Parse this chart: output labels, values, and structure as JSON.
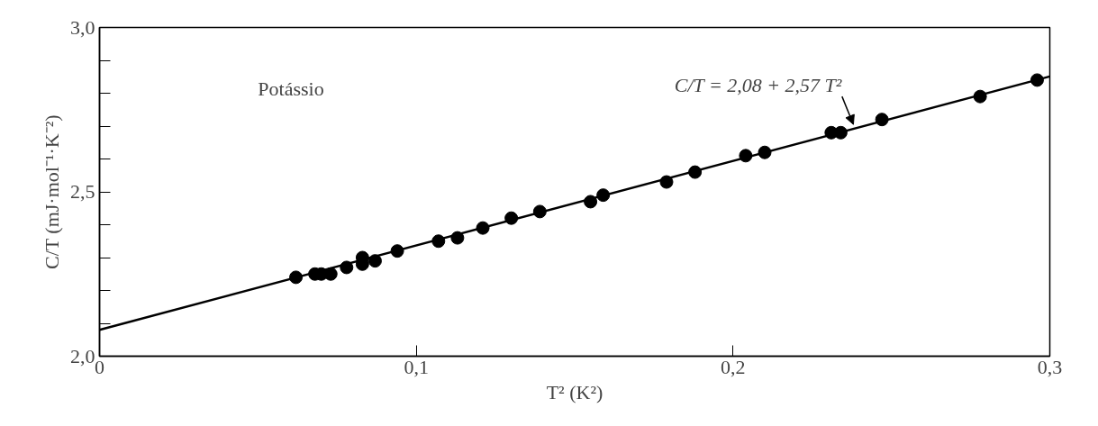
{
  "chart_data": {
    "type": "scatter",
    "xlabel": "T² (K²)",
    "ylabel": "C/T (mJ·mol⁻¹·K⁻²)",
    "annotations": [
      "Potássio",
      {
        "text": "C/T = 2,08 + 2,57 T²",
        "x": 0.238,
        "y": 2.69
      }
    ],
    "xlim": [
      0,
      0.3
    ],
    "ylim": [
      2.0,
      3.0
    ],
    "xticks": [
      0,
      {
        "value": 0.1,
        "label": "0,1"
      },
      {
        "value": 0.2,
        "label": "0,2"
      },
      {
        "value": 0.3,
        "label": "0,3"
      }
    ],
    "yticks": [
      {
        "value": 2.0,
        "label": "2,0"
      },
      {
        "value": 2.1,
        "label": null
      },
      {
        "value": 2.2,
        "label": null
      },
      {
        "value": 2.3,
        "label": null
      },
      {
        "value": 2.4,
        "label": null
      },
      {
        "value": 2.5,
        "label": "2,5"
      },
      {
        "value": 2.6,
        "label": null
      },
      {
        "value": 2.7,
        "label": null
      },
      {
        "value": 2.8,
        "label": null
      },
      {
        "value": 2.9,
        "label": null
      },
      {
        "value": 3.0,
        "label": "3,0"
      }
    ],
    "grid": false,
    "marker": "circle",
    "series": [
      {
        "type": "line",
        "marker": "none",
        "color": "#000000",
        "x": [
          0,
          0.3
        ],
        "values": [
          2.08,
          2.851
        ]
      },
      {
        "color": "#000000",
        "x": [
          0.062,
          0.068,
          0.07,
          0.073,
          0.078,
          0.083,
          0.083,
          0.087,
          0.094,
          0.107,
          0.113,
          0.121,
          0.13,
          0.139,
          0.155,
          0.159,
          0.179,
          0.188,
          0.204,
          0.21,
          0.231,
          0.234,
          0.247,
          0.278,
          0.296
        ],
        "values": [
          2.24,
          2.25,
          2.25,
          2.25,
          2.27,
          2.3,
          2.28,
          2.29,
          2.32,
          2.35,
          2.36,
          2.39,
          2.42,
          2.44,
          2.47,
          2.49,
          2.53,
          2.56,
          2.61,
          2.62,
          2.68,
          2.68,
          2.72,
          2.79,
          2.84
        ]
      }
    ]
  }
}
